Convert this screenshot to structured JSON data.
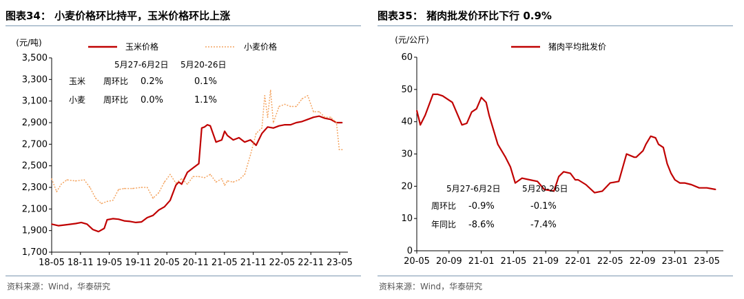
{
  "colors": {
    "red": "#c00000",
    "orange": "#f4a460",
    "axis": "#000000",
    "rule": "#7a96b0"
  },
  "left": {
    "title": "图表34： 小麦价格环比持平，玉米价格环比上涨",
    "source": "资料来源：Wind，华泰研究",
    "unit": "(元/吨)",
    "table": {
      "header1": "5月27-6月2日",
      "header2": "5月20-26日",
      "rows": [
        {
          "name": "玉米",
          "metric": "周环比",
          "v1": "0.2%",
          "v2": "0.1%"
        },
        {
          "name": "小麦",
          "metric": "周环比",
          "v1": "0.0%",
          "v2": "1.1%"
        }
      ]
    }
  },
  "right": {
    "title": "图表35： 猪肉批发价环比下行 0.9%",
    "source": "资料来源：Wind，华泰研究",
    "unit": "(元/公斤)",
    "table": {
      "header1": "5月27-6月2日",
      "header2": "5月20-26日",
      "rows": [
        {
          "metric": "周环比",
          "v1": "-0.9%",
          "v2": "-0.1%"
        },
        {
          "metric": "年同比",
          "v1": "-8.6%",
          "v2": "-7.4%"
        }
      ]
    }
  },
  "chart_data": [
    {
      "type": "line",
      "title": "小麦价格环比持平，玉米价格环比上涨",
      "ylabel": "(元/吨)",
      "ylim": [
        1700,
        3500
      ],
      "yticks": [
        1700,
        1900,
        2100,
        2300,
        2500,
        2700,
        2900,
        3100,
        3300,
        3500
      ],
      "xlim": [
        2018.333,
        2023.5
      ],
      "xticks": [
        "18-05",
        "18-11",
        "19-05",
        "19-11",
        "20-05",
        "20-11",
        "21-05",
        "21-11",
        "22-05",
        "22-11",
        "23-05"
      ],
      "legend_position": "top",
      "series": [
        {
          "name": "玉米价格",
          "color": "#c00000",
          "x": [
            2018.333,
            2018.45,
            2018.6,
            2018.75,
            2018.85,
            2018.95,
            2019.05,
            2019.15,
            2019.25,
            2019.3,
            2019.4,
            2019.5,
            2019.6,
            2019.7,
            2019.8,
            2019.9,
            2020.0,
            2020.1,
            2020.2,
            2020.3,
            2020.4,
            2020.5,
            2020.55,
            2020.6,
            2020.7,
            2020.8,
            2020.9,
            2020.95,
            2021.0,
            2021.05,
            2021.1,
            2021.2,
            2021.3,
            2021.35,
            2021.4,
            2021.5,
            2021.6,
            2021.7,
            2021.8,
            2021.9,
            2022.0,
            2022.1,
            2022.2,
            2022.3,
            2022.4,
            2022.5,
            2022.6,
            2022.7,
            2022.8,
            2022.9,
            2023.0,
            2023.1,
            2023.2,
            2023.3,
            2023.4
          ],
          "values": [
            1960,
            1945,
            1955,
            1965,
            1975,
            1960,
            1910,
            1890,
            1920,
            2000,
            2010,
            2005,
            1990,
            1985,
            1975,
            1980,
            2020,
            2040,
            2090,
            2120,
            2180,
            2320,
            2350,
            2330,
            2440,
            2480,
            2520,
            2850,
            2860,
            2880,
            2870,
            2720,
            2740,
            2820,
            2780,
            2740,
            2760,
            2720,
            2740,
            2690,
            2800,
            2860,
            2850,
            2870,
            2880,
            2880,
            2900,
            2910,
            2930,
            2950,
            2960,
            2940,
            2930,
            2900,
            2900
          ]
        },
        {
          "name": "小麦价格",
          "color": "#f4a460",
          "x": [
            2018.333,
            2018.42,
            2018.5,
            2018.6,
            2018.75,
            2018.9,
            2019.0,
            2019.1,
            2019.2,
            2019.3,
            2019.4,
            2019.5,
            2019.6,
            2019.75,
            2019.9,
            2020.0,
            2020.1,
            2020.2,
            2020.3,
            2020.4,
            2020.5,
            2020.6,
            2020.7,
            2020.8,
            2020.9,
            2021.0,
            2021.1,
            2021.2,
            2021.3,
            2021.35,
            2021.4,
            2021.5,
            2021.6,
            2021.7,
            2021.8,
            2021.9,
            2022.0,
            2022.05,
            2022.1,
            2022.15,
            2022.2,
            2022.3,
            2022.4,
            2022.5,
            2022.6,
            2022.7,
            2022.8,
            2022.9,
            2023.0,
            2023.1,
            2023.2,
            2023.3,
            2023.35,
            2023.4
          ],
          "values": [
            2380,
            2260,
            2330,
            2370,
            2360,
            2370,
            2300,
            2200,
            2150,
            2170,
            2180,
            2280,
            2290,
            2290,
            2300,
            2300,
            2200,
            2250,
            2350,
            2420,
            2340,
            2380,
            2330,
            2400,
            2400,
            2390,
            2420,
            2350,
            2380,
            2320,
            2360,
            2350,
            2370,
            2420,
            2600,
            2800,
            2850,
            3150,
            2950,
            3200,
            2900,
            3050,
            3070,
            3050,
            3050,
            3120,
            3150,
            3000,
            3000,
            2950,
            2950,
            2900,
            2650,
            2650
          ]
        }
      ]
    },
    {
      "type": "line",
      "title": "猪肉批发价环比下行 0.9%",
      "ylabel": "(元/公斤)",
      "ylim": [
        0,
        60
      ],
      "yticks": [
        0,
        10,
        20,
        30,
        40,
        50,
        60
      ],
      "xlim": [
        2020.333,
        2023.5
      ],
      "xticks": [
        "20-05",
        "20-09",
        "21-01",
        "21-05",
        "21-09",
        "22-01",
        "22-05",
        "22-09",
        "23-01",
        "23-05"
      ],
      "legend_position": "top",
      "series": [
        {
          "name": "猪肉平均批发价",
          "color": "#c00000",
          "x": [
            2020.333,
            2020.37,
            2020.42,
            2020.5,
            2020.55,
            2020.6,
            2020.7,
            2020.8,
            2020.85,
            2020.9,
            2020.95,
            2021.0,
            2021.05,
            2021.08,
            2021.12,
            2021.17,
            2021.25,
            2021.3,
            2021.35,
            2021.42,
            2021.5,
            2021.58,
            2021.65,
            2021.75,
            2021.8,
            2021.85,
            2021.92,
            2021.97,
            2022.0,
            2022.08,
            2022.17,
            2022.25,
            2022.33,
            2022.42,
            2022.5,
            2022.58,
            2022.6,
            2022.67,
            2022.7,
            2022.75,
            2022.8,
            2022.83,
            2022.88,
            2022.92,
            2022.96,
            2023.0,
            2023.05,
            2023.1,
            2023.17,
            2023.25,
            2023.33,
            2023.42
          ],
          "values": [
            43.5,
            39,
            42,
            48.5,
            48.5,
            48,
            46,
            39,
            39.5,
            43,
            44,
            47.5,
            46,
            42,
            38,
            33,
            29,
            26,
            21,
            22.5,
            22,
            21.5,
            19,
            18.5,
            23,
            24.5,
            24,
            22,
            22,
            20.5,
            18,
            18.5,
            21,
            21.5,
            30,
            29,
            29,
            31,
            33,
            35.5,
            35,
            33,
            32,
            27,
            24,
            22,
            21,
            21,
            20.5,
            19.5,
            19.5,
            19
          ]
        }
      ]
    }
  ]
}
